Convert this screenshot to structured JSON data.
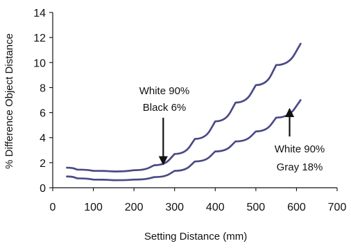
{
  "chart_data": {
    "type": "line",
    "title": "",
    "xlabel": "Setting Distance (mm)",
    "ylabel": "% Difference Object Distance",
    "xlim": [
      0,
      700
    ],
    "ylim": [
      0,
      14
    ],
    "x_ticks": [
      0,
      100,
      200,
      300,
      400,
      500,
      600,
      700
    ],
    "y_ticks": [
      0,
      2,
      4,
      6,
      8,
      10,
      12,
      14
    ],
    "grid": false,
    "line_color": "#4a4a86",
    "series": [
      {
        "annotation": [
          "White 90%",
          "Black 6%"
        ],
        "x": [
          35,
          60,
          100,
          150,
          200,
          250,
          300,
          350,
          400,
          450,
          500,
          550,
          610
        ],
        "y": [
          1.6,
          1.45,
          1.35,
          1.3,
          1.4,
          1.8,
          2.7,
          3.9,
          5.3,
          6.8,
          8.2,
          9.8,
          11.5
        ]
      },
      {
        "annotation": [
          "White 90%",
          "Gray 18%"
        ],
        "x": [
          35,
          60,
          100,
          150,
          200,
          250,
          300,
          350,
          400,
          450,
          500,
          550,
          610
        ],
        "y": [
          0.9,
          0.75,
          0.65,
          0.6,
          0.65,
          0.85,
          1.35,
          2.1,
          2.9,
          3.7,
          4.5,
          5.6,
          7.0
        ]
      }
    ],
    "annotations": [
      {
        "lines": [
          "White 90%",
          "Black 6%"
        ],
        "arrow_target": {
          "x": 272,
          "y": 1.7
        },
        "arrow_direction": "down"
      },
      {
        "lines": [
          "White 90%",
          "Gray 18%"
        ],
        "arrow_target": {
          "x": 583,
          "y": 6.3
        },
        "arrow_direction": "up"
      }
    ]
  }
}
